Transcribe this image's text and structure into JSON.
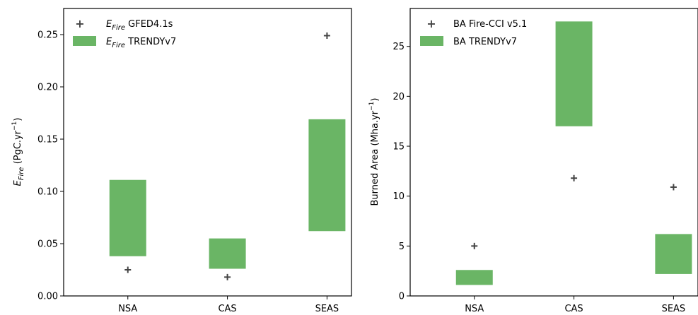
{
  "colors": {
    "bar": "#6ab565",
    "marker": "#444444",
    "axis": "#000000"
  },
  "chart_data": [
    {
      "type": "bar",
      "categories": [
        "NSA",
        "CAS",
        "SEAS"
      ],
      "ylim": [
        0,
        0.275
      ],
      "yticks": [
        0.0,
        0.05,
        0.1,
        0.15,
        0.2,
        0.25
      ],
      "ytick_labels": [
        "0.00",
        "0.05",
        "0.10",
        "0.15",
        "0.20",
        "0.25"
      ],
      "ylabel_symbol": "E",
      "ylabel_subscript": "Fire",
      "ylabel_unit": " (PgC.yr",
      "ylabel_exp": "−1",
      "ylabel_close": ")",
      "legend_placement": "top-left",
      "series": [
        {
          "name": "GFED4.1s",
          "name_symbol": "E",
          "name_subscript": "Fire",
          "kind": "marker",
          "values": [
            0.025,
            0.018,
            0.249
          ]
        },
        {
          "name": "TRENDYv7",
          "name_symbol": "E",
          "name_subscript": "Fire",
          "kind": "range",
          "ranges": [
            [
              0.038,
              0.111
            ],
            [
              0.026,
              0.055
            ],
            [
              0.062,
              0.169
            ]
          ]
        }
      ]
    },
    {
      "type": "bar",
      "categories": [
        "NSA",
        "CAS",
        "SEAS"
      ],
      "ylim": [
        0,
        28.8
      ],
      "yticks": [
        0,
        5,
        10,
        15,
        20,
        25
      ],
      "ytick_labels": [
        "0",
        "5",
        "10",
        "15",
        "20",
        "25"
      ],
      "ylabel": "Burned Area (Mha.yr",
      "ylabel_exp": "−1",
      "ylabel_close": ")",
      "legend_placement": "top-left",
      "series": [
        {
          "name": "BA Fire-CCI v5.1",
          "kind": "marker",
          "values": [
            5.0,
            11.8,
            10.9
          ]
        },
        {
          "name": "BA TRENDYv7",
          "kind": "range",
          "ranges": [
            [
              1.1,
              2.6
            ],
            [
              17.0,
              27.5
            ],
            [
              2.2,
              6.2
            ]
          ]
        }
      ]
    }
  ]
}
